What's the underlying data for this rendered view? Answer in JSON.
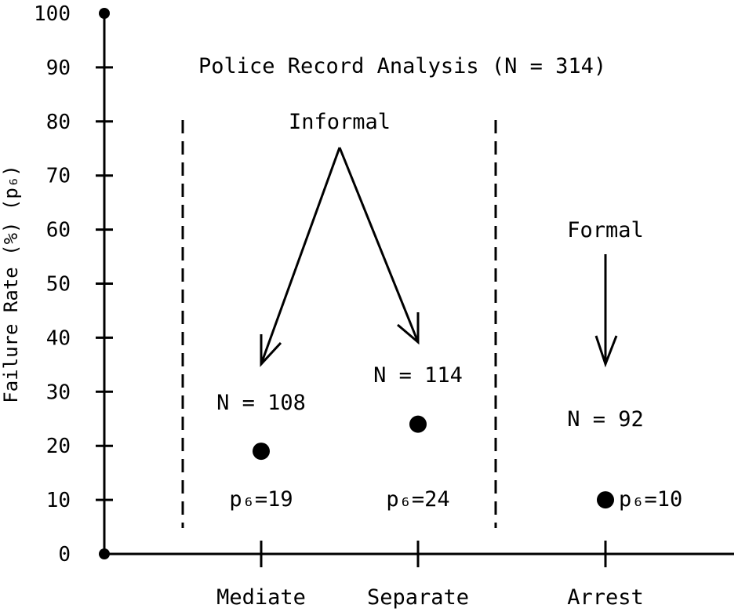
{
  "chart_data": {
    "type": "scatter",
    "title": "Police Record Analysis (N = 314)",
    "ylabel": "Failure Rate (%) (p₆)",
    "xlabel": "",
    "ylim": [
      0,
      100
    ],
    "yticks": [
      0,
      10,
      20,
      30,
      40,
      50,
      60,
      70,
      80,
      90,
      100
    ],
    "grid": false,
    "categories": [
      "Mediate",
      "Separate",
      "Arrest"
    ],
    "values": [
      19,
      24,
      10
    ],
    "sample_sizes": [
      "N = 108",
      "N = 114",
      "N = 92"
    ],
    "value_labels": [
      "p₆=19",
      "p₆=24",
      "p₆=10"
    ],
    "groups": [
      {
        "label": "Informal",
        "categories": [
          "Mediate",
          "Separate"
        ]
      },
      {
        "label": "Formal",
        "categories": [
          "Arrest"
        ]
      }
    ]
  }
}
